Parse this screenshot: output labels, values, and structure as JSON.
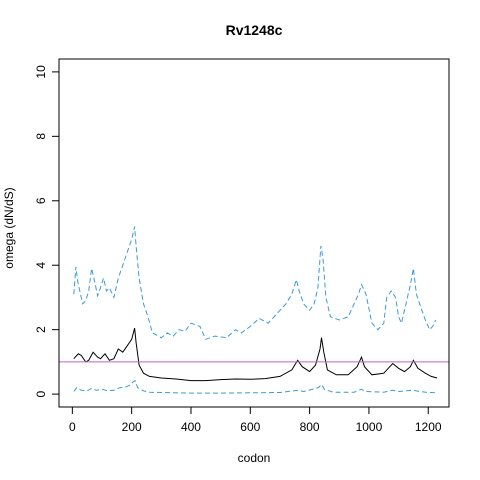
{
  "chart_data": {
    "type": "line",
    "title": "Rv1248c",
    "xlabel": "codon",
    "ylabel": "omega (dN/dS)",
    "xlim": [
      -45,
      1270
    ],
    "ylim": [
      -0.4,
      10.4
    ],
    "xticks": [
      0,
      200,
      400,
      600,
      800,
      1000,
      1200
    ],
    "yticks": [
      0,
      2,
      4,
      6,
      8,
      10
    ],
    "reference_line": {
      "y": 1,
      "color": "#c060c0"
    },
    "colors": {
      "main": "#000000",
      "bounds": "#3a9ad9"
    },
    "series": [
      {
        "style": "solid",
        "points": [
          [
            5,
            1.1
          ],
          [
            20,
            1.25
          ],
          [
            30,
            1.2
          ],
          [
            45,
            1.0
          ],
          [
            55,
            1.05
          ],
          [
            70,
            1.3
          ],
          [
            85,
            1.15
          ],
          [
            95,
            1.1
          ],
          [
            110,
            1.25
          ],
          [
            125,
            1.05
          ],
          [
            140,
            1.1
          ],
          [
            155,
            1.4
          ],
          [
            170,
            1.3
          ],
          [
            185,
            1.5
          ],
          [
            200,
            1.7
          ],
          [
            210,
            2.05
          ],
          [
            215,
            1.6
          ],
          [
            225,
            0.9
          ],
          [
            240,
            0.65
          ],
          [
            260,
            0.55
          ],
          [
            300,
            0.5
          ],
          [
            350,
            0.47
          ],
          [
            400,
            0.42
          ],
          [
            450,
            0.42
          ],
          [
            500,
            0.45
          ],
          [
            550,
            0.47
          ],
          [
            600,
            0.46
          ],
          [
            650,
            0.48
          ],
          [
            700,
            0.55
          ],
          [
            740,
            0.75
          ],
          [
            760,
            1.05
          ],
          [
            775,
            0.85
          ],
          [
            800,
            0.7
          ],
          [
            820,
            0.9
          ],
          [
            835,
            1.4
          ],
          [
            840,
            1.75
          ],
          [
            848,
            1.3
          ],
          [
            860,
            0.75
          ],
          [
            890,
            0.6
          ],
          [
            930,
            0.6
          ],
          [
            960,
            0.85
          ],
          [
            975,
            1.15
          ],
          [
            985,
            0.85
          ],
          [
            1010,
            0.6
          ],
          [
            1050,
            0.65
          ],
          [
            1080,
            0.95
          ],
          [
            1100,
            0.8
          ],
          [
            1120,
            0.7
          ],
          [
            1140,
            0.85
          ],
          [
            1150,
            1.05
          ],
          [
            1165,
            0.8
          ],
          [
            1190,
            0.65
          ],
          [
            1210,
            0.55
          ],
          [
            1230,
            0.5
          ]
        ]
      },
      {
        "style": "dashed",
        "points": [
          [
            5,
            3.1
          ],
          [
            12,
            3.95
          ],
          [
            18,
            3.5
          ],
          [
            25,
            3.2
          ],
          [
            35,
            2.8
          ],
          [
            45,
            2.9
          ],
          [
            55,
            3.2
          ],
          [
            65,
            3.9
          ],
          [
            75,
            3.5
          ],
          [
            85,
            3.05
          ],
          [
            95,
            3.3
          ],
          [
            105,
            3.6
          ],
          [
            115,
            3.2
          ],
          [
            125,
            3.3
          ],
          [
            140,
            3.0
          ],
          [
            155,
            3.6
          ],
          [
            170,
            4.0
          ],
          [
            185,
            4.4
          ],
          [
            200,
            4.8
          ],
          [
            210,
            5.2
          ],
          [
            215,
            4.6
          ],
          [
            225,
            3.6
          ],
          [
            240,
            2.8
          ],
          [
            255,
            2.4
          ],
          [
            270,
            1.9
          ],
          [
            300,
            1.75
          ],
          [
            320,
            1.9
          ],
          [
            340,
            1.8
          ],
          [
            360,
            2.0
          ],
          [
            380,
            1.95
          ],
          [
            400,
            2.2
          ],
          [
            430,
            2.1
          ],
          [
            450,
            1.7
          ],
          [
            480,
            1.8
          ],
          [
            520,
            1.75
          ],
          [
            550,
            2.0
          ],
          [
            570,
            1.9
          ],
          [
            600,
            2.1
          ],
          [
            630,
            2.35
          ],
          [
            660,
            2.2
          ],
          [
            690,
            2.5
          ],
          [
            720,
            2.8
          ],
          [
            740,
            3.1
          ],
          [
            755,
            3.55
          ],
          [
            765,
            3.2
          ],
          [
            780,
            2.8
          ],
          [
            800,
            2.6
          ],
          [
            815,
            2.8
          ],
          [
            828,
            3.3
          ],
          [
            838,
            4.6
          ],
          [
            845,
            4.2
          ],
          [
            855,
            3.0
          ],
          [
            870,
            2.4
          ],
          [
            900,
            2.3
          ],
          [
            930,
            2.4
          ],
          [
            950,
            2.8
          ],
          [
            965,
            3.1
          ],
          [
            975,
            3.4
          ],
          [
            990,
            3.1
          ],
          [
            1010,
            2.2
          ],
          [
            1030,
            2.0
          ],
          [
            1050,
            2.2
          ],
          [
            1060,
            3.0
          ],
          [
            1075,
            3.2
          ],
          [
            1090,
            3.0
          ],
          [
            1100,
            2.4
          ],
          [
            1110,
            2.2
          ],
          [
            1120,
            2.6
          ],
          [
            1140,
            3.4
          ],
          [
            1150,
            3.9
          ],
          [
            1160,
            3.1
          ],
          [
            1175,
            2.7
          ],
          [
            1190,
            2.3
          ],
          [
            1205,
            2.0
          ],
          [
            1215,
            2.1
          ],
          [
            1225,
            2.3
          ]
        ]
      },
      {
        "style": "dashed",
        "points": [
          [
            5,
            0.08
          ],
          [
            15,
            0.2
          ],
          [
            30,
            0.12
          ],
          [
            50,
            0.1
          ],
          [
            65,
            0.18
          ],
          [
            80,
            0.12
          ],
          [
            100,
            0.15
          ],
          [
            120,
            0.1
          ],
          [
            140,
            0.12
          ],
          [
            160,
            0.2
          ],
          [
            180,
            0.22
          ],
          [
            195,
            0.28
          ],
          [
            205,
            0.38
          ],
          [
            212,
            0.42
          ],
          [
            220,
            0.2
          ],
          [
            240,
            0.1
          ],
          [
            260,
            0.06
          ],
          [
            300,
            0.05
          ],
          [
            400,
            0.03
          ],
          [
            500,
            0.03
          ],
          [
            600,
            0.04
          ],
          [
            700,
            0.05
          ],
          [
            760,
            0.12
          ],
          [
            780,
            0.08
          ],
          [
            830,
            0.2
          ],
          [
            840,
            0.3
          ],
          [
            850,
            0.15
          ],
          [
            880,
            0.06
          ],
          [
            950,
            0.06
          ],
          [
            975,
            0.15
          ],
          [
            990,
            0.08
          ],
          [
            1050,
            0.06
          ],
          [
            1080,
            0.12
          ],
          [
            1100,
            0.08
          ],
          [
            1150,
            0.12
          ],
          [
            1170,
            0.08
          ],
          [
            1200,
            0.05
          ],
          [
            1230,
            0.04
          ]
        ]
      }
    ]
  }
}
